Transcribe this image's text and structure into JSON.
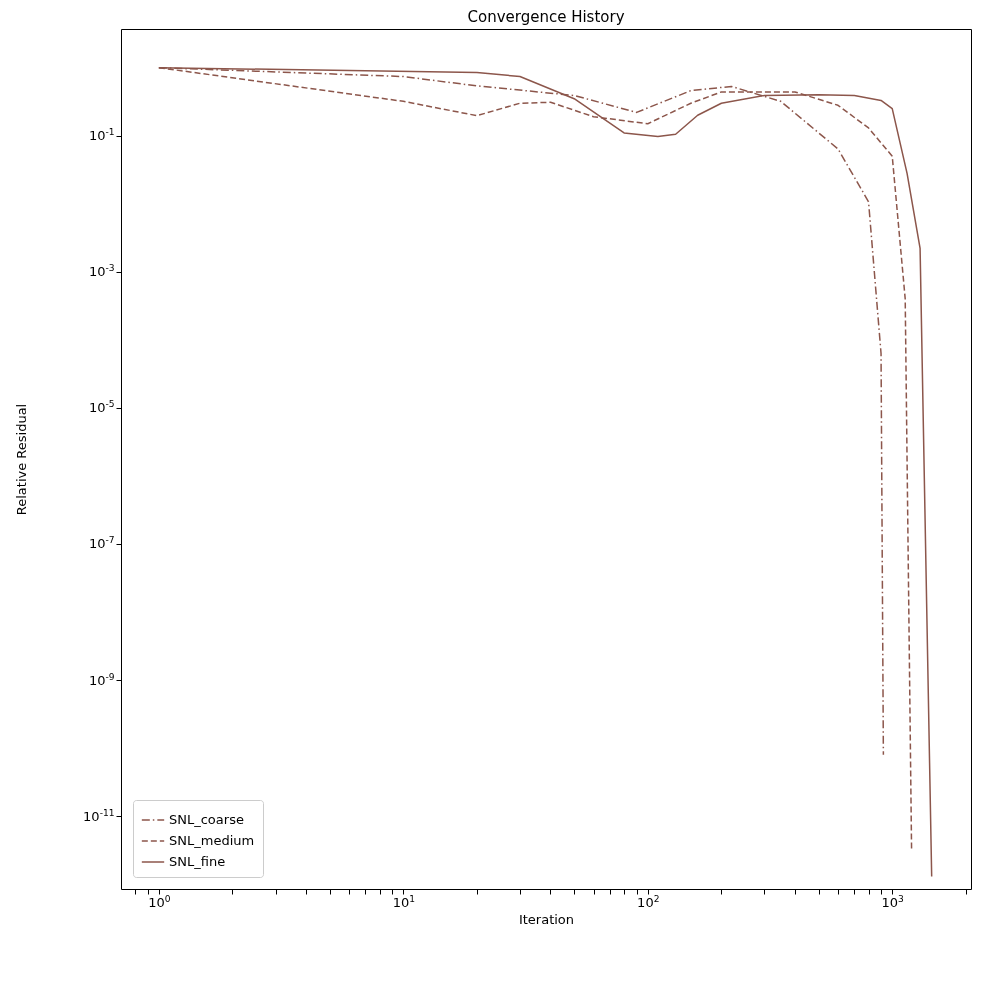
{
  "chart_data": {
    "type": "line",
    "title": "Convergence History",
    "xlabel": "Iteration",
    "ylabel": "Relative Residual",
    "log": "xy",
    "xlim": [
      0.7,
      2100
    ],
    "ylim": [
      8.5e-13,
      3.7
    ],
    "xticks": [
      {
        "value": 1,
        "label": "10$^{0}$"
      },
      {
        "value": 10,
        "label": "10$^{1}$"
      },
      {
        "value": 100,
        "label": "10$^{2}$"
      },
      {
        "value": 1000,
        "label": "10$^{3}$"
      },
      {
        "value": 0.8,
        "label": null
      },
      {
        "value": 0.9,
        "label": null
      },
      {
        "value": 2,
        "label": null
      },
      {
        "value": 3,
        "label": null
      },
      {
        "value": 4,
        "label": null
      },
      {
        "value": 5,
        "label": null
      },
      {
        "value": 6,
        "label": null
      },
      {
        "value": 7,
        "label": null
      },
      {
        "value": 8,
        "label": null
      },
      {
        "value": 9,
        "label": null
      },
      {
        "value": 20,
        "label": null
      },
      {
        "value": 30,
        "label": null
      },
      {
        "value": 40,
        "label": null
      },
      {
        "value": 50,
        "label": null
      },
      {
        "value": 60,
        "label": null
      },
      {
        "value": 70,
        "label": null
      },
      {
        "value": 80,
        "label": null
      },
      {
        "value": 90,
        "label": null
      },
      {
        "value": 200,
        "label": null
      },
      {
        "value": 300,
        "label": null
      },
      {
        "value": 400,
        "label": null
      },
      {
        "value": 500,
        "label": null
      },
      {
        "value": 600,
        "label": null
      },
      {
        "value": 700,
        "label": null
      },
      {
        "value": 800,
        "label": null
      },
      {
        "value": 900,
        "label": null
      },
      {
        "value": 2000,
        "label": null
      }
    ],
    "yticks": [
      {
        "value": 0.1,
        "label": "10$^{-1}$"
      },
      {
        "value": 0.001,
        "label": "10$^{-3}$"
      },
      {
        "value": 1e-05,
        "label": "10$^{-5}$"
      },
      {
        "value": 1e-07,
        "label": "10$^{-7}$"
      },
      {
        "value": 1e-09,
        "label": "10$^{-9}$"
      },
      {
        "value": 1e-11,
        "label": "10$^{-11}$"
      }
    ],
    "grid": false,
    "legend": "bottom left",
    "series": [
      {
        "name": "SNL_coarse",
        "color": "#8c564b",
        "line_style": "dashdot",
        "x": [
          1,
          10,
          20,
          50,
          90,
          150,
          220,
          350,
          500,
          600,
          800,
          900,
          920
        ],
        "values": [
          1,
          0.74,
          0.54,
          0.39,
          0.22,
          0.46,
          0.53,
          0.32,
          0.11,
          0.064,
          0.0107,
          6.3e-05,
          8e-11
        ]
      },
      {
        "name": "SNL_medium",
        "color": "#8c564b",
        "line_style": "dashed",
        "x": [
          1,
          10,
          20,
          30,
          40,
          60,
          100,
          150,
          200,
          400,
          600,
          800,
          1000,
          1130,
          1200
        ],
        "values": [
          1,
          0.32,
          0.197,
          0.3,
          0.31,
          0.19,
          0.15,
          0.3,
          0.44,
          0.44,
          0.28,
          0.13,
          0.05,
          0.0004,
          3.1e-12
        ]
      },
      {
        "name": "SNL_fine",
        "color": "#8c564b",
        "line_style": "solid",
        "x": [
          1,
          20,
          30,
          50,
          80,
          110,
          130,
          160,
          200,
          300,
          500,
          700,
          900,
          1000,
          1150,
          1300,
          1450
        ],
        "values": [
          1,
          0.85,
          0.74,
          0.35,
          0.11,
          0.097,
          0.105,
          0.2,
          0.3,
          0.39,
          0.4,
          0.39,
          0.33,
          0.25,
          0.028,
          0.0022,
          1.3e-12
        ]
      }
    ]
  }
}
